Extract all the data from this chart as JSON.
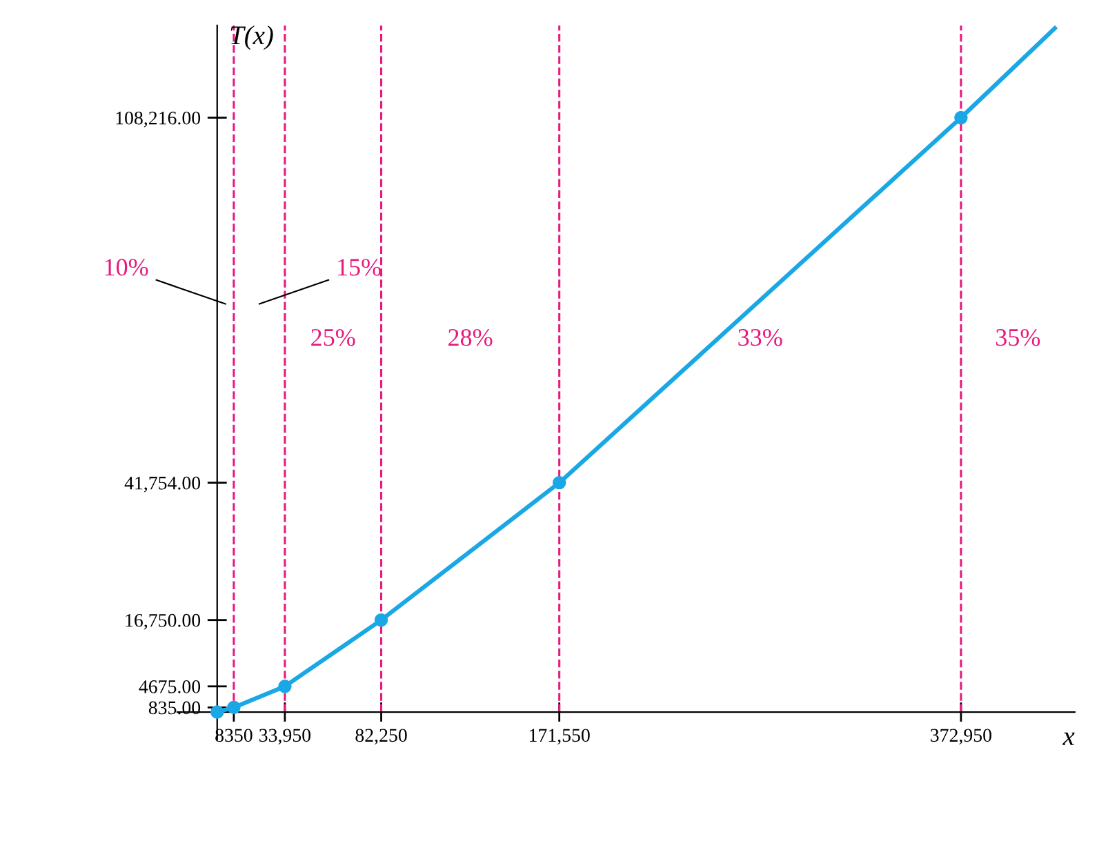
{
  "chart_data": {
    "type": "line",
    "xlabel": "x",
    "ylabel": "T(x)",
    "series": [
      {
        "color": "#1aa7e6",
        "x": [
          0,
          8350,
          33950,
          82250,
          171550,
          372950
        ],
        "values": [
          0,
          835,
          4675,
          16750,
          41754,
          108216
        ],
        "marker": "circle"
      },
      {
        "color": "#1aa7e6",
        "x": [
          372950,
          420000
        ],
        "values": [
          108216,
          124500
        ],
        "marker": "none"
      }
    ],
    "xlim": [
      -20000,
      430000
    ],
    "ylim": [
      -5000,
      125000
    ],
    "xticks": [
      {
        "value": 8350,
        "label": "8350"
      },
      {
        "value": 33950,
        "label": "33,950"
      },
      {
        "value": 82250,
        "label": "82,250"
      },
      {
        "value": 171550,
        "label": "171,550"
      },
      {
        "value": 372950,
        "label": "372,950"
      }
    ],
    "yticks": [
      {
        "value": 835,
        "label": "835.00"
      },
      {
        "value": 4675,
        "label": "4675.00"
      },
      {
        "value": 16750,
        "label": "16,750.00"
      },
      {
        "value": 41754,
        "label": "41,754.00"
      },
      {
        "value": 108216,
        "label": "108,216.00"
      }
    ],
    "ref_lines": [
      {
        "axis": "x",
        "value": 8350,
        "color": "#e8197d",
        "line_style": "dashed"
      },
      {
        "axis": "x",
        "value": 33950,
        "color": "#e8197d",
        "line_style": "dashed"
      },
      {
        "axis": "x",
        "value": 82250,
        "color": "#e8197d",
        "line_style": "dashed"
      },
      {
        "axis": "x",
        "value": 171550,
        "color": "#e8197d",
        "line_style": "dashed"
      },
      {
        "axis": "x",
        "value": 372950,
        "color": "#e8197d",
        "line_style": "dashed"
      }
    ],
    "annotations": [
      "10%",
      "15%",
      "25%",
      "28%",
      "33%",
      "35%"
    ],
    "grid": false,
    "legend": false
  }
}
